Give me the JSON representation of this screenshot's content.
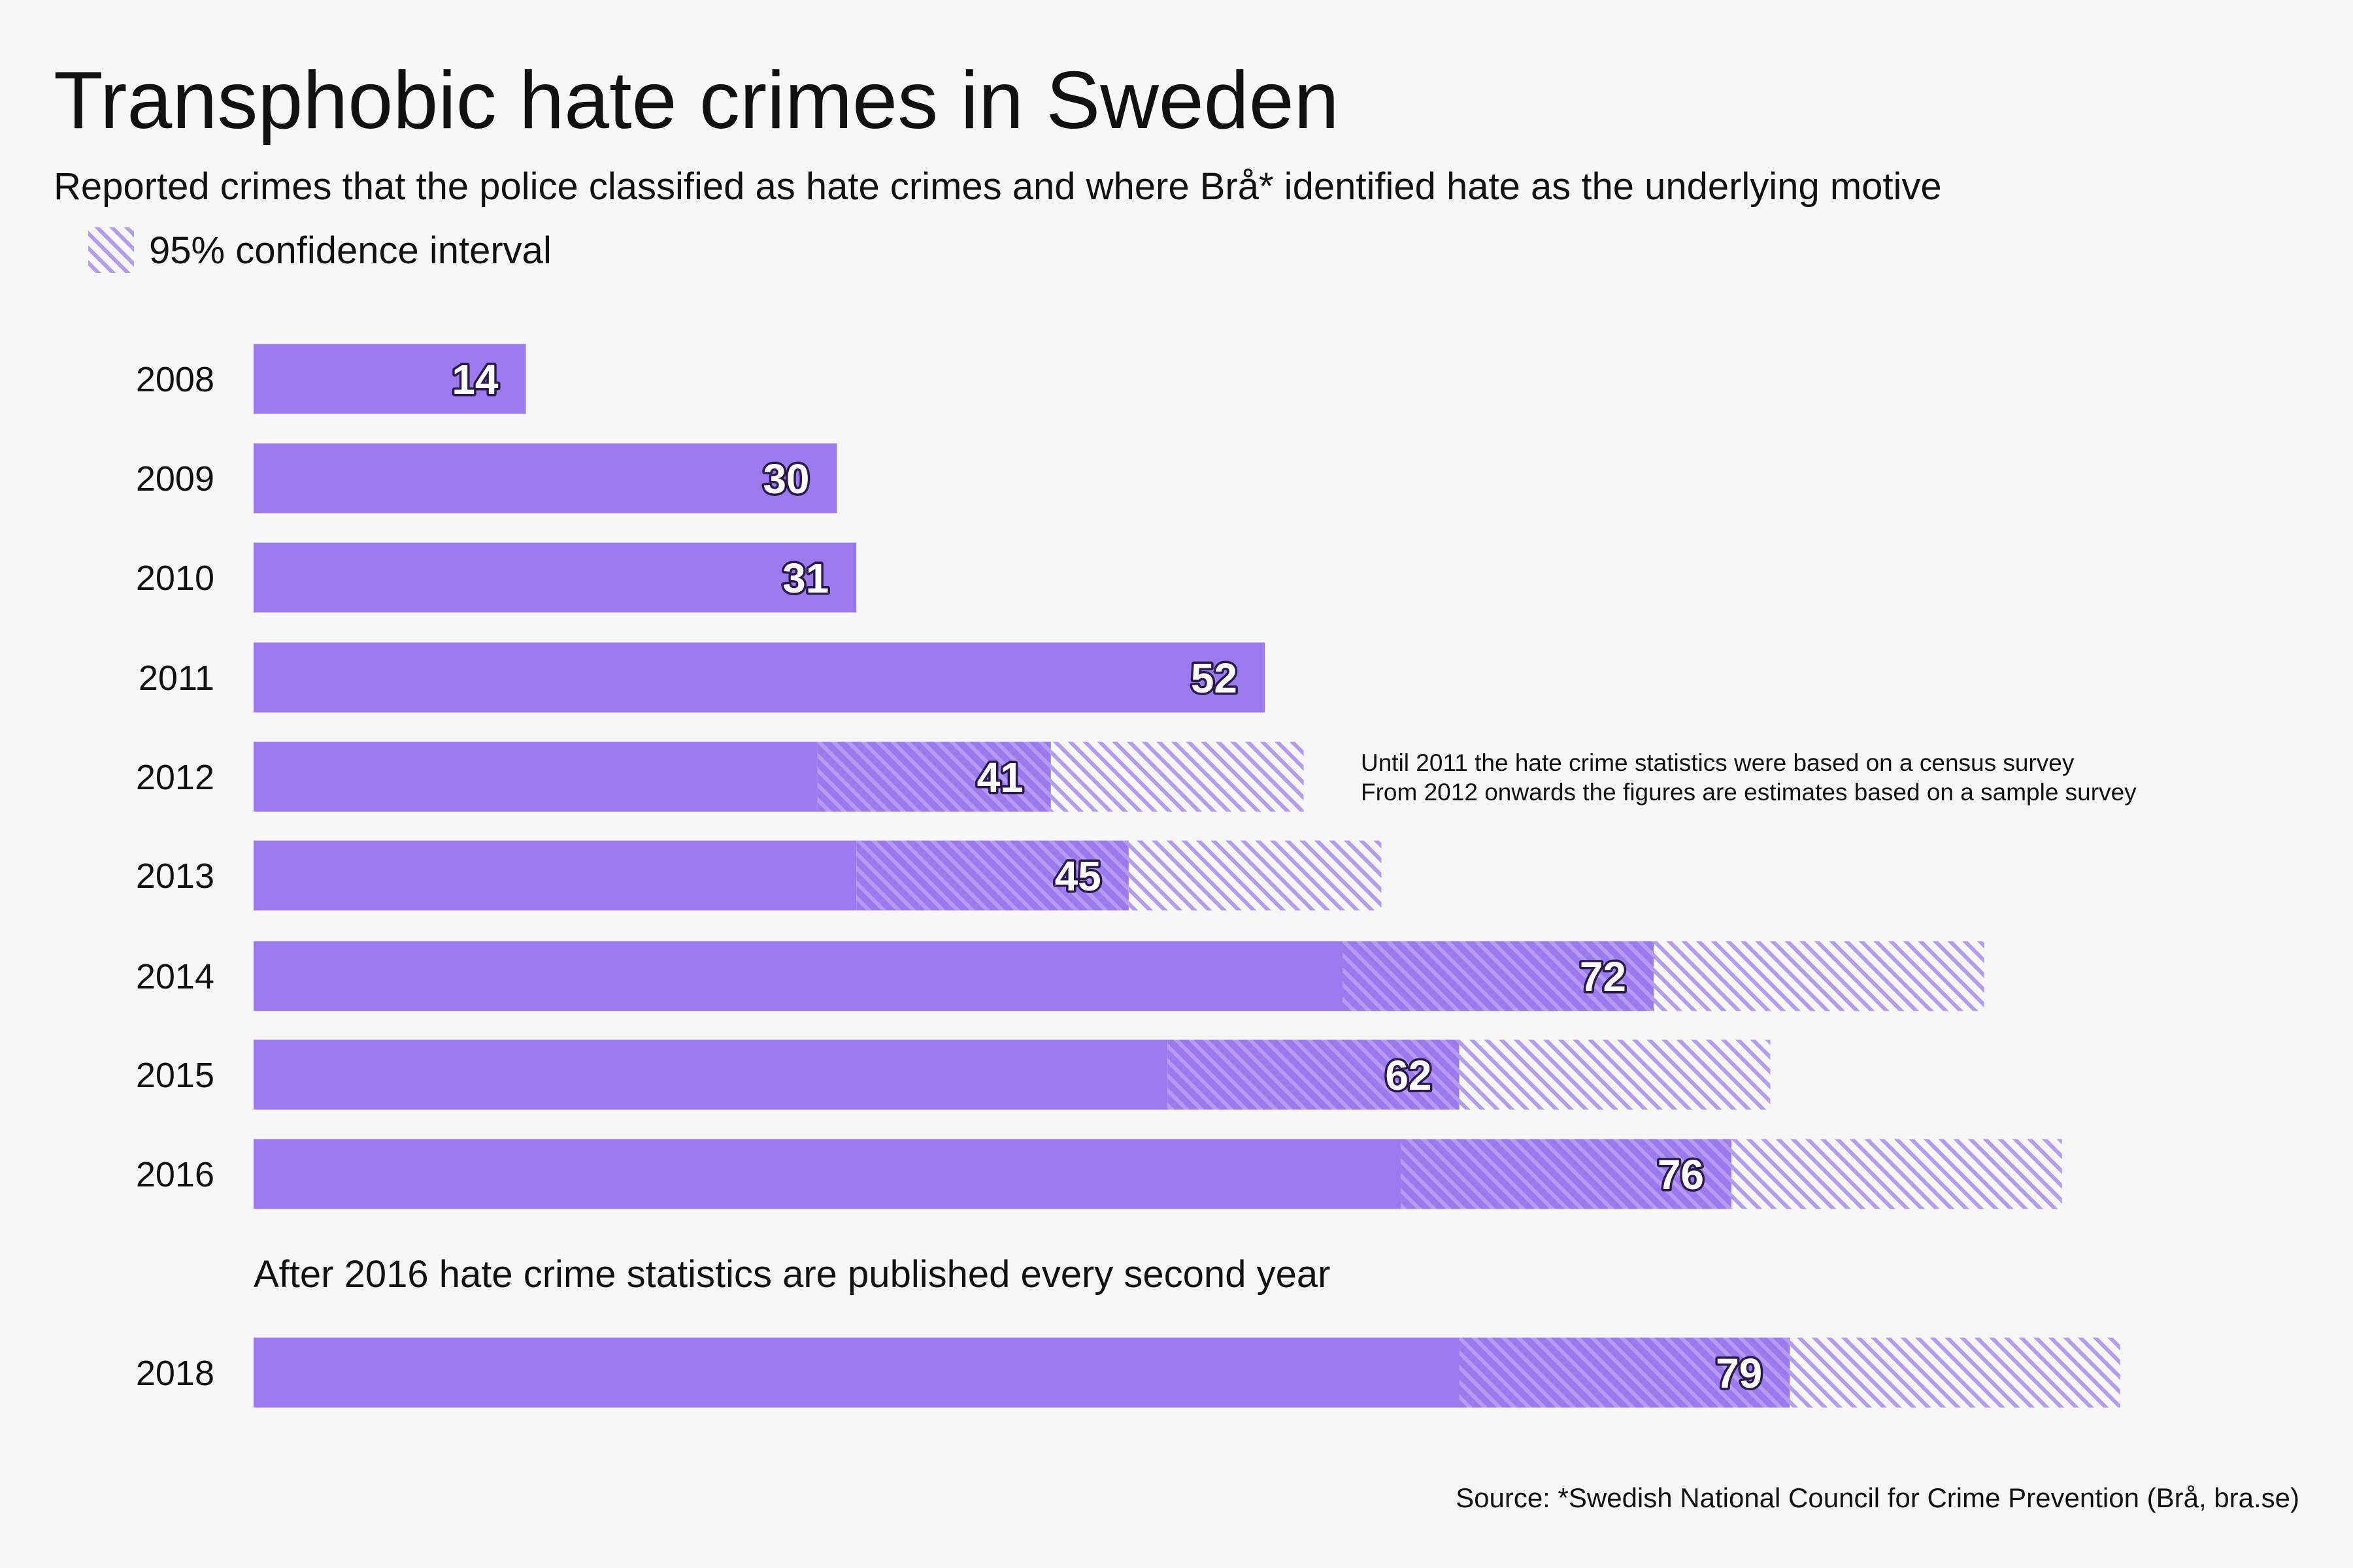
{
  "title": "Transphobic hate crimes in Sweden",
  "subtitle": "Reported crimes that the police classified as hate crimes and where Brå* identified hate as the underlying motive",
  "legend": {
    "label": "95% confidence interval"
  },
  "note": {
    "line1": "Until 2011 the hate crime statistics were based on a census survey",
    "line2": "From 2012 onwards the figures are estimates based on a sample survey"
  },
  "gap_note": "After 2016 hate crime statistics are published every second year",
  "source": "Source: *Swedish National Council for Crime Prevention (Brå, bra.se)",
  "colors": {
    "bar": "#9b7aed",
    "hatch": "#b49cf3",
    "background": "#f7f7f7",
    "label_outline": "#2a1a4a"
  },
  "chart_data": {
    "type": "bar",
    "orientation": "horizontal",
    "title": "Transphobic hate crimes in Sweden",
    "categories": [
      "2008",
      "2009",
      "2010",
      "2011",
      "2012",
      "2013",
      "2014",
      "2015",
      "2016",
      "2018"
    ],
    "values": [
      14,
      30,
      31,
      52,
      41,
      45,
      72,
      62,
      76,
      79
    ],
    "ci_low": [
      null,
      null,
      null,
      null,
      29,
      31,
      56,
      47,
      59,
      62
    ],
    "ci_high": [
      null,
      null,
      null,
      null,
      54,
      58,
      89,
      78,
      93,
      96
    ],
    "xlim": [
      0,
      110
    ],
    "grid": false,
    "legend": "top-left"
  }
}
